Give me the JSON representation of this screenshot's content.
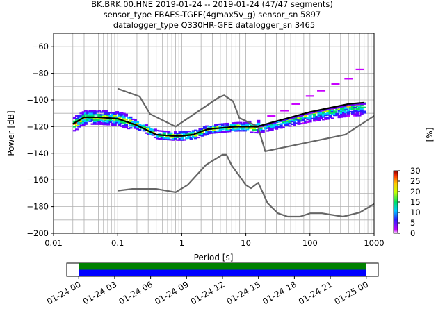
{
  "chart_data": {
    "type": "heatmap",
    "title_lines": [
      "BK.BRK.00.HNE   2019-01-24 -- 2019-01-24  (47/47 segments)",
      "sensor_type FBAES-TGFE(4gmax5v_g) sensor_sn 5897",
      "datalogger_type Q330HR-GFE datalogger_sn 3465"
    ],
    "xlabel": "Period [s]",
    "ylabel": "Power [dB]",
    "xscale": "log",
    "xlim": [
      0.01,
      1000
    ],
    "ylim": [
      -200,
      -50
    ],
    "xticks": [
      0.01,
      0.1,
      1,
      10,
      100,
      1000
    ],
    "xtick_labels": [
      "0.01",
      "0.1",
      "1",
      "10",
      "100",
      "1000"
    ],
    "yticks": [
      -200,
      -180,
      -160,
      -140,
      -120,
      -100,
      -80,
      -60
    ],
    "ytick_labels": [
      "−200",
      "−180",
      "−160",
      "−140",
      "−120",
      "−100",
      "−80",
      "−60"
    ],
    "grid": true,
    "colorbar": {
      "label": "[%]",
      "ticks": [
        0,
        5,
        10,
        15,
        20,
        25,
        30
      ],
      "tick_labels": [
        "0",
        "5",
        "10",
        "15",
        "20",
        "25",
        "30"
      ],
      "range": [
        0,
        30
      ]
    },
    "mean_curve": {
      "periods": [
        0.02,
        0.03,
        0.05,
        0.1,
        0.2,
        0.4,
        0.7,
        1.0,
        1.5,
        2.5,
        4,
        7,
        10,
        15,
        25,
        50,
        100,
        200,
        400,
        700
      ],
      "db": [
        -118,
        -113,
        -113,
        -114,
        -119,
        -126,
        -127,
        -127,
        -126,
        -122,
        -121,
        -120,
        -120,
        -120,
        -117,
        -113,
        -109,
        -106,
        -103,
        -102
      ]
    },
    "nhnm": {
      "periods": [
        0.1,
        0.22,
        0.32,
        0.8,
        3.8,
        4.6,
        6.3,
        7.9,
        15.4,
        20,
        354.8,
        1000
      ],
      "db": [
        -91.5,
        -97.4,
        -110.5,
        -120,
        -98,
        -96.5,
        -101,
        -113.5,
        -120,
        -138.5,
        -126,
        -112
      ]
    },
    "nlnm": {
      "periods": [
        0.1,
        0.17,
        0.4,
        0.8,
        1.24,
        2.4,
        4.3,
        5.0,
        6.0,
        10.0,
        12.0,
        15.6,
        21.9,
        31.6,
        45,
        70,
        101,
        154,
        328,
        600,
        1000
      ],
      "db": [
        -168,
        -166.7,
        -166.7,
        -169.2,
        -163.7,
        -148.6,
        -141.1,
        -141.1,
        -149,
        -163.8,
        -166.2,
        -162.1,
        -177.5,
        -185,
        -187.5,
        -187.5,
        -185,
        -185,
        -187.5,
        -184.4,
        -178
      ]
    },
    "pdf_scatter_note": "probability density of power per period, colored 0-30 %",
    "timeline": {
      "tick_labels": [
        "01-24 00",
        "01-24 03",
        "01-24 06",
        "01-24 09",
        "01-24 12",
        "01-24 15",
        "01-24 18",
        "01-24 21",
        "01-25 00"
      ],
      "range_hours": [
        -1,
        25
      ],
      "coverage": [
        {
          "start_h": 0,
          "end_h": 24,
          "color": "#008000"
        },
        {
          "start_h": 0,
          "end_h": 24,
          "color": "#0000ff"
        }
      ]
    }
  }
}
